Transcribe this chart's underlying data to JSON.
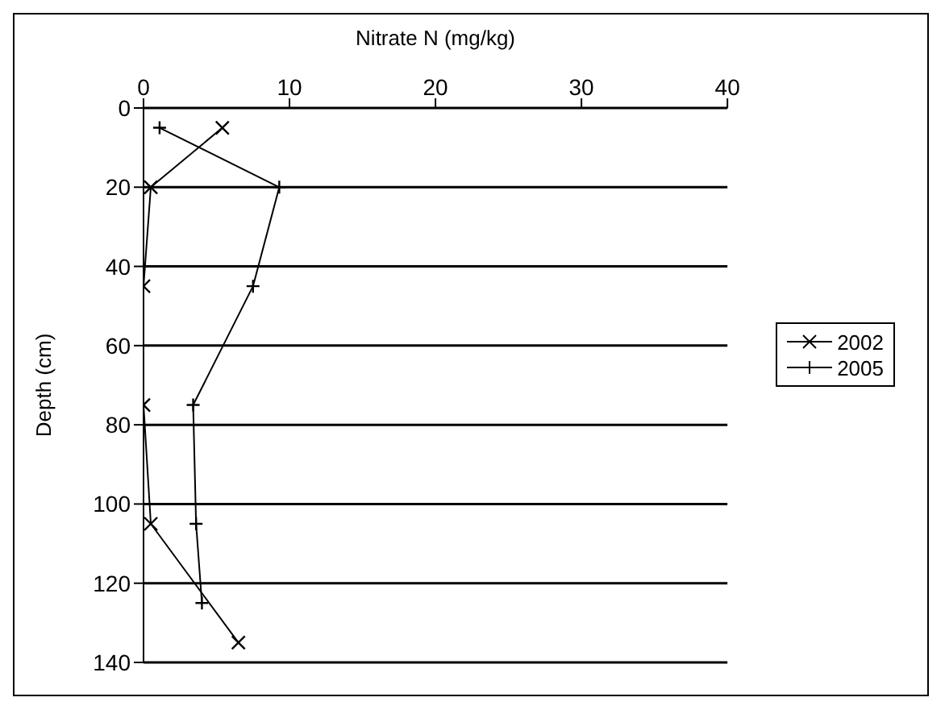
{
  "chart_data": {
    "type": "line",
    "xlabel": "Nitrate N (mg/kg)",
    "ylabel": "Depth (cm)",
    "xlim": [
      0,
      40
    ],
    "xticks": [
      0,
      10,
      20,
      30,
      40
    ],
    "ylim": [
      140,
      0
    ],
    "yticks": [
      0,
      20,
      40,
      60,
      80,
      100,
      120,
      140
    ],
    "grid": "y",
    "legend": "right",
    "line_style": "solid",
    "series": [
      {
        "name": "2002",
        "color": "#000000",
        "marker": "cross",
        "x": [
          5.4,
          0.5,
          0,
          0,
          0.5,
          6.5
        ],
        "values": [
          5,
          20,
          45,
          75,
          105,
          135
        ]
      },
      {
        "name": "2005",
        "color": "#000000",
        "marker": "plus",
        "x": [
          1.1,
          9.3,
          7.5,
          3.4,
          3.6,
          4
        ],
        "values": [
          5,
          20,
          45,
          75,
          105,
          125
        ]
      }
    ]
  }
}
